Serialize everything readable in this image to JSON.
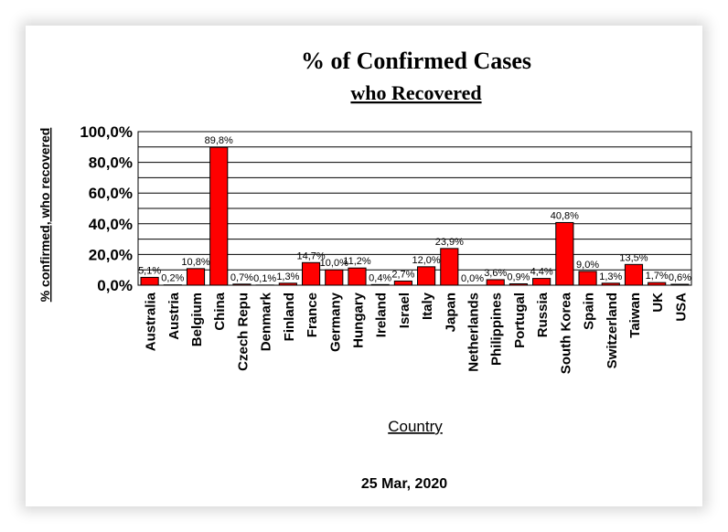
{
  "chart_data": {
    "type": "bar",
    "title": "% of Confirmed Cases",
    "subtitle": "who Recovered",
    "xlabel": "Country",
    "ylabel": "% confirmed, who recovered",
    "date": "25 Mar, 2020",
    "ylim": [
      0,
      100
    ],
    "yticks": [
      "0,0%",
      "20,0%",
      "40,0%",
      "60,0%",
      "80,0%",
      "100,0%"
    ],
    "grid": true,
    "legend": "none",
    "bar_color": "#ff0000",
    "categories": [
      "Australia",
      "Austria",
      "Belgium",
      "China",
      "Czech Repu",
      "Denmark",
      "Finland",
      "France",
      "Germany",
      "Hungary",
      "Ireland",
      "Israel",
      "Italy",
      "Japan",
      "Netherlands",
      "Philippines",
      "Portugal",
      "Russia",
      "South Korea",
      "Spain",
      "Switzerland",
      "Taiwan",
      "UK",
      "USA"
    ],
    "values": [
      5.1,
      0.2,
      10.8,
      89.8,
      0.7,
      0.1,
      1.3,
      14.7,
      10.0,
      11.2,
      0.4,
      2.7,
      12.0,
      23.9,
      0.0,
      3.6,
      0.9,
      4.4,
      40.8,
      9.0,
      1.3,
      13.5,
      1.7,
      0.6
    ],
    "data_labels": [
      "5,1%",
      "0,2%",
      "10,8%",
      "89,8%",
      "0,7%",
      "0,1%",
      "1,3%",
      "14,7%",
      "10,0%",
      "11,2%",
      "0,4%",
      "2,7%",
      "12,0%",
      "23,9%",
      "0,0%",
      "3,6%",
      "0,9%",
      "4,4%",
      "40,8%",
      "9,0%",
      "1,3%",
      "13,5%",
      "1,7%",
      "0,6%"
    ]
  }
}
